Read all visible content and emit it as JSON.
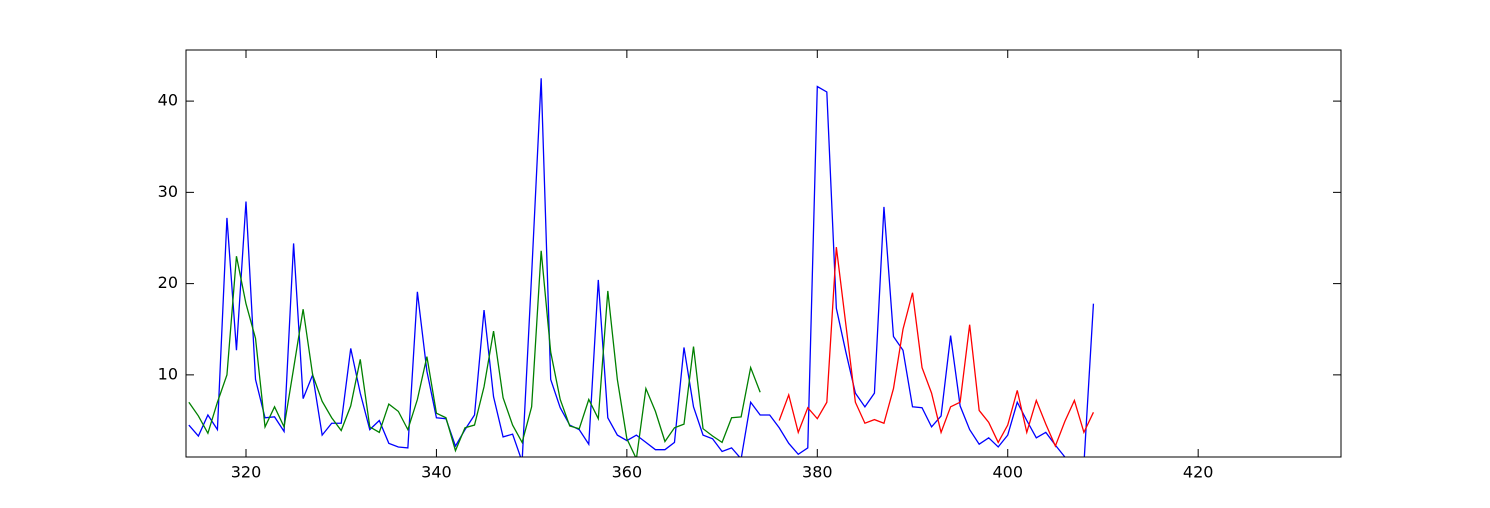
{
  "chart_data": {
    "type": "line",
    "x": [
      314,
      315,
      316,
      317,
      318,
      319,
      320,
      321,
      322,
      323,
      324,
      325,
      326,
      327,
      328,
      329,
      330,
      331,
      332,
      333,
      334,
      335,
      336,
      337,
      338,
      339,
      340,
      341,
      342,
      343,
      344,
      345,
      346,
      347,
      348,
      349,
      350,
      351,
      352,
      353,
      354,
      355,
      356,
      357,
      358,
      359,
      360,
      361,
      362,
      363,
      364,
      365,
      366,
      367,
      368,
      369,
      370,
      371,
      372,
      373,
      374,
      375,
      376,
      377,
      378,
      379,
      380,
      381,
      382,
      383,
      384,
      385,
      386,
      387,
      388,
      389,
      390,
      391,
      392,
      393,
      394,
      395,
      396,
      397,
      398,
      399,
      400,
      401,
      402,
      403,
      404,
      405,
      406,
      407,
      408,
      409
    ],
    "series": [
      {
        "color": "#0000ff",
        "values": [
          4.5,
          3.3,
          5.6,
          4.0,
          27.2,
          12.7,
          29.0,
          9.5,
          5.3,
          5.4,
          3.8,
          24.4,
          7.4,
          10.0,
          3.4,
          4.7,
          4.7,
          12.9,
          8.0,
          4.0,
          5.0,
          2.5,
          2.1,
          2.0,
          19.1,
          10.4,
          5.3,
          5.2,
          2.2,
          4.0,
          5.6,
          17.1,
          7.6,
          3.2,
          3.5,
          0.5,
          21.0,
          42.5,
          9.5,
          6.4,
          4.5,
          4.0,
          2.4,
          20.4,
          5.3,
          3.4,
          2.8,
          3.4,
          2.6,
          1.8,
          1.8,
          2.6,
          13.0,
          6.5,
          3.4,
          3.0,
          1.6,
          2.0,
          0.8,
          7.0,
          5.6,
          5.6,
          4.2,
          2.5,
          1.3,
          2.0,
          41.6,
          41.0,
          17.3,
          12.5,
          8.0,
          6.5,
          8.0,
          28.4,
          14.2,
          12.7,
          6.5,
          6.4,
          4.3,
          5.5,
          14.3,
          6.6,
          4.0,
          2.4,
          3.1,
          2.1,
          3.4,
          7.0,
          5.0,
          3.1,
          3.7,
          2.3,
          1.0,
          0.3,
          0.2,
          17.8
        ]
      },
      {
        "color": "#008000",
        "values": [
          7.0,
          5.5,
          3.6,
          7.0,
          10.0,
          23.0,
          17.8,
          14.0,
          4.3,
          6.5,
          4.3,
          10.7,
          17.2,
          10.0,
          7.1,
          5.3,
          3.9,
          6.6,
          11.7,
          4.3,
          3.7,
          6.8,
          6.0,
          4.0,
          7.3,
          12.0,
          5.8,
          5.3,
          1.7,
          4.2,
          4.5,
          8.7,
          14.8,
          7.5,
          4.5,
          2.6,
          6.5,
          23.6,
          12.5,
          7.3,
          4.4,
          4.1,
          7.3,
          5.2,
          19.2,
          9.5,
          3.0,
          0.8,
          8.5,
          6.0,
          2.7,
          4.2,
          4.6,
          13.1,
          4.1,
          3.3,
          2.6,
          5.3,
          5.4,
          10.8,
          8.1,
          null,
          null,
          null,
          null,
          null,
          null,
          null,
          null,
          null,
          null,
          null,
          null,
          null,
          null,
          null,
          null,
          null,
          null,
          null,
          null,
          null,
          null,
          null,
          null,
          null,
          null,
          null,
          null,
          null,
          null,
          null,
          null,
          null,
          null,
          null
        ]
      },
      {
        "color": "#ff0000",
        "values": [
          null,
          null,
          null,
          null,
          null,
          null,
          null,
          null,
          null,
          null,
          null,
          null,
          null,
          null,
          null,
          null,
          null,
          null,
          null,
          null,
          null,
          null,
          null,
          null,
          null,
          null,
          null,
          null,
          null,
          null,
          null,
          null,
          null,
          null,
          null,
          null,
          null,
          null,
          null,
          null,
          null,
          null,
          null,
          null,
          null,
          null,
          null,
          null,
          null,
          null,
          null,
          null,
          null,
          null,
          null,
          null,
          null,
          null,
          null,
          null,
          null,
          null,
          5.0,
          7.8,
          3.7,
          6.4,
          5.2,
          7.0,
          24.0,
          15.5,
          7.0,
          4.7,
          5.1,
          4.7,
          8.5,
          15.0,
          19.0,
          10.8,
          8.0,
          3.7,
          6.5,
          7.0,
          15.5,
          6.1,
          4.8,
          2.6,
          4.5,
          8.3,
          3.7,
          7.2,
          4.6,
          2.2,
          4.9,
          7.2,
          3.7,
          5.9
        ]
      }
    ],
    "xlim": [
      313.7,
      435
    ],
    "ylim": [
      1,
      45.6
    ],
    "xticks": [
      320,
      340,
      360,
      380,
      400,
      420
    ],
    "yticks": [
      10,
      20,
      30,
      40
    ]
  }
}
